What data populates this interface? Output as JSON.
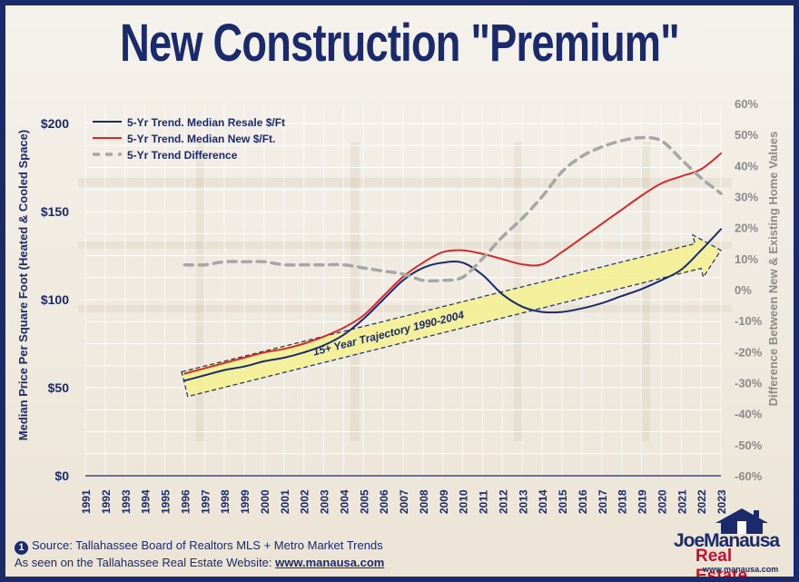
{
  "title": "New Construction \"Premium\"",
  "footer": {
    "marker": "1",
    "source": "Source: Tallahassee Board of Realtors MLS + Metro Market Trends",
    "seen_on_prefix": "As seen on the Tallahassee Real Estate Website:",
    "url": "www.manausa.com"
  },
  "logo": {
    "line1": "JoeManausa",
    "line2": "Real Estate",
    "line3": "www.manausa.com",
    "icon": "house-icon"
  },
  "colors": {
    "navy": "#1b2a6b",
    "red": "#d42a2a",
    "gray": "#a6a6a6",
    "arrow": "#f3f08e"
  },
  "chart_data": {
    "type": "line",
    "x_ticks": [
      "1991",
      "1992",
      "1993",
      "1994",
      "1995",
      "1996",
      "1997",
      "1998",
      "1999",
      "2000",
      "2001",
      "2002",
      "2003",
      "2004",
      "2005",
      "2006",
      "2007",
      "2008",
      "2009",
      "2010",
      "2011",
      "2012",
      "2013",
      "2014",
      "2015",
      "2016",
      "2017",
      "2018",
      "2019",
      "2020",
      "2021",
      "2022",
      "2023"
    ],
    "ylabel": "Median Price Per Square Foot (Heated & Cooled Space)",
    "y2label": "Difference Between New & Existing Home Values",
    "y_ticks": [
      "$0",
      "$50",
      "$100",
      "$150",
      "$200"
    ],
    "y2_ticks": [
      "-60%",
      "-50%",
      "-40%",
      "-30%",
      "-20%",
      "-10%",
      "0%",
      "10%",
      "20%",
      "30%",
      "40%",
      "50%",
      "60%"
    ],
    "ylim": [
      0,
      200
    ],
    "y2lim": [
      -60,
      60
    ],
    "grid": true,
    "legend_position": "top-left",
    "series": [
      {
        "name": "5-Yr Trend. Median Resale $/Ft",
        "axis": "left",
        "color": "#1b2a6b",
        "x": [
          1996,
          1997,
          1998,
          1999,
          2000,
          2001,
          2002,
          2003,
          2004,
          2005,
          2006,
          2007,
          2008,
          2009,
          2010,
          2011,
          2012,
          2013,
          2014,
          2015,
          2016,
          2017,
          2018,
          2019,
          2020,
          2021,
          2022,
          2023
        ],
        "values": [
          54,
          57,
          60,
          62,
          65,
          67,
          70,
          74,
          80,
          89,
          100,
          111,
          118,
          121,
          121,
          114,
          103,
          96,
          93,
          93,
          95,
          98,
          102,
          106,
          111,
          117,
          128,
          140
        ]
      },
      {
        "name": "5-Yr Trend. Median New $/Ft.",
        "axis": "left",
        "color": "#d42a2a",
        "x": [
          1996,
          1997,
          1998,
          1999,
          2000,
          2001,
          2002,
          2003,
          2004,
          2005,
          2006,
          2007,
          2008,
          2009,
          2010,
          2011,
          2012,
          2013,
          2014,
          2015,
          2016,
          2017,
          2018,
          2019,
          2020,
          2021,
          2022,
          2023
        ],
        "values": [
          58,
          61,
          64,
          67,
          70,
          72,
          75,
          79,
          84,
          91,
          102,
          113,
          121,
          127,
          128,
          126,
          123,
          120,
          120,
          127,
          135,
          143,
          151,
          159,
          166,
          170,
          174,
          183
        ]
      },
      {
        "name": "5-Yr Trend Difference",
        "axis": "right",
        "color": "#a6a6a6",
        "dashed": true,
        "x": [
          1996,
          1997,
          1998,
          1999,
          2000,
          2001,
          2002,
          2003,
          2004,
          2005,
          2006,
          2007,
          2008,
          2009,
          2010,
          2011,
          2012,
          2013,
          2014,
          2015,
          2016,
          2017,
          2018,
          2019,
          2020,
          2021,
          2022,
          2023
        ],
        "values": [
          8,
          8,
          9,
          9,
          9,
          8,
          8,
          8,
          8,
          7,
          6,
          5,
          3,
          3,
          4,
          10,
          17,
          23,
          30,
          38,
          43,
          46,
          48,
          49,
          48,
          42,
          36,
          31
        ]
      }
    ],
    "annotation": {
      "label": "15+ Year Trajectory 1990-2004",
      "style": "arrow",
      "from": [
        1996,
        52
      ],
      "to": [
        2023,
        128
      ]
    }
  }
}
